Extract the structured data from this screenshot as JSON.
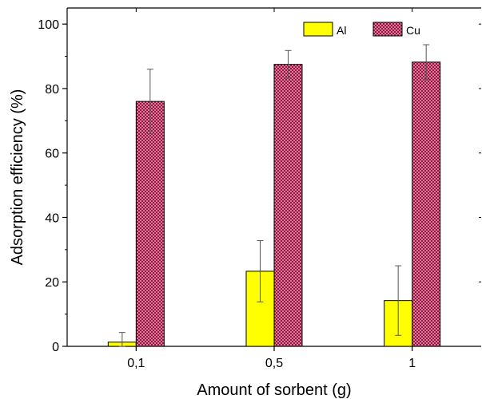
{
  "chart_data": {
    "type": "bar",
    "xlabel": "Amount of sorbent (g)",
    "ylabel": "Adsorption efficiency (%)",
    "categories": [
      "0,1",
      "0,5",
      "1"
    ],
    "ylim": [
      0,
      105
    ],
    "yticks": [
      0,
      20,
      40,
      60,
      80,
      100
    ],
    "legend_position": "top-right",
    "series": [
      {
        "name": "Al",
        "color": "#ffff00",
        "values": [
          1.3,
          23.3,
          14.2
        ],
        "errors": [
          3.0,
          9.5,
          10.8
        ]
      },
      {
        "name": "Cu",
        "color": "#990033",
        "pattern": "crosshatch",
        "values": [
          76.0,
          87.5,
          88.2
        ],
        "errors": [
          10.0,
          4.3,
          5.4
        ]
      }
    ]
  }
}
